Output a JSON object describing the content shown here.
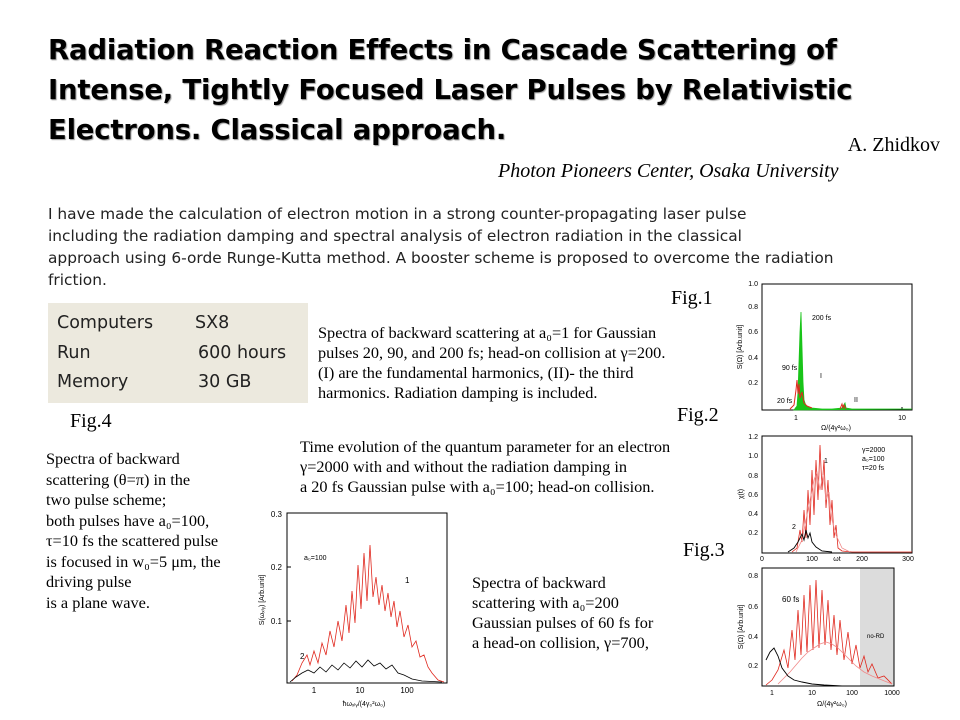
{
  "title": {
    "lines": [
      "Radiation Reaction Effects in Cascade Scattering of",
      "Intense, Tightly Focused Laser Pulses by Relativistic",
      "Electrons. Classical  approach."
    ]
  },
  "author": "A.  Zhidkov",
  "affiliation": "Photon Pioneers Center, Osaka University",
  "abstract": {
    "lines": [
      "I have made the calculation of electron motion in a strong counter-propagating  laser pulse",
      "including the radiation damping and spectral analysis of electron radiation  in the classical",
      "approach using  6-orde Runge-Kutta method. A booster scheme is proposed to overcome the radiation",
      "friction."
    ]
  },
  "resources": {
    "rows": [
      {
        "label": "Computers",
        "value": "SX8"
      },
      {
        "label": "Run",
        "value": "600 hours"
      },
      {
        "label": "Memory",
        "value": "30  GB"
      }
    ]
  },
  "figures": {
    "fig1": {
      "label": "Fig.1",
      "caption": [
        "Spectra of backward scattering at a₀=1 for Gaussian",
        "pulses 20, 90, and 200 fs; head-on collision at γ=200.",
        "(I)      are the fundamental harmonics, (II)- the third",
        "harmonics. Radiation damping is included."
      ],
      "plot": {
        "ylabel": "S(Ω) [Arb.unit]",
        "xlabel": "Ω/(4γ²ω₀)",
        "yticks": [
          "0.2",
          "0.4",
          "0.6",
          "0.8",
          "1.0"
        ],
        "xticks": [
          "1",
          "10"
        ],
        "annotations": [
          "200 fs",
          "90 fs",
          "20 fs",
          "I",
          "II"
        ]
      }
    },
    "fig2": {
      "label": "Fig.2",
      "caption": [
        "Time evolution of the quantum parameter for an electron",
        "γ=2000 with and without the radiation damping in",
        "a 20 fs Gaussian pulse with a₀=100; head-on collision."
      ],
      "plot": {
        "ylabel": "χ(t)",
        "xlabel": "ωt",
        "yticks": [
          "0.2",
          "0.4",
          "0.6",
          "0.8",
          "1.0",
          "1.2"
        ],
        "xticks": [
          "0",
          "100",
          "200",
          "300"
        ],
        "legend": [
          "γ=2000",
          "a₀=100",
          "τ=20 fs"
        ],
        "annotations": [
          "1",
          "2"
        ]
      }
    },
    "fig3": {
      "label": "Fig.3",
      "caption": [
        "Spectra of backward",
        "scattering with a₀=200",
        "Gaussian pulses of 60 fs for",
        "a head-on collision, γ=700,"
      ],
      "plot": {
        "ylabel": "S(Ω) [Arb.unit]",
        "xlabel": "Ω/(4γ²ω₀)",
        "yticks": [
          "0.2",
          "0.4",
          "0.6",
          "0.8"
        ],
        "xticks": [
          "1",
          "10",
          "100",
          "1000"
        ],
        "annotations": [
          "60 fs",
          "no-RD"
        ]
      }
    },
    "fig4": {
      "label": "Fig.4",
      "caption": [
        "Spectra of backward",
        "scattering (θ=π) in the",
        "two pulse scheme;",
        "both pulses have a₀=100,",
        "τ=10 fs the scattered pulse",
        "is focused in w₀=5 μm, the",
        "driving pulse",
        "is a plane wave."
      ],
      "plot": {
        "ylabel": "S(ωₓₗᵧ) [Arb.unit]",
        "xlabel": "ħωₓₗᵧ/(4γ₀²ω₀)",
        "yticks": [
          "0.1",
          "0.2",
          "0.3"
        ],
        "xticks": [
          "1",
          "10",
          "100"
        ],
        "annotations": [
          "a₀=100",
          "1",
          "2"
        ]
      }
    }
  },
  "colors": {
    "red": "#e0281e",
    "pink": "#f08a8a",
    "green": "#19c419",
    "black": "#000000",
    "box": "#ece9de"
  }
}
